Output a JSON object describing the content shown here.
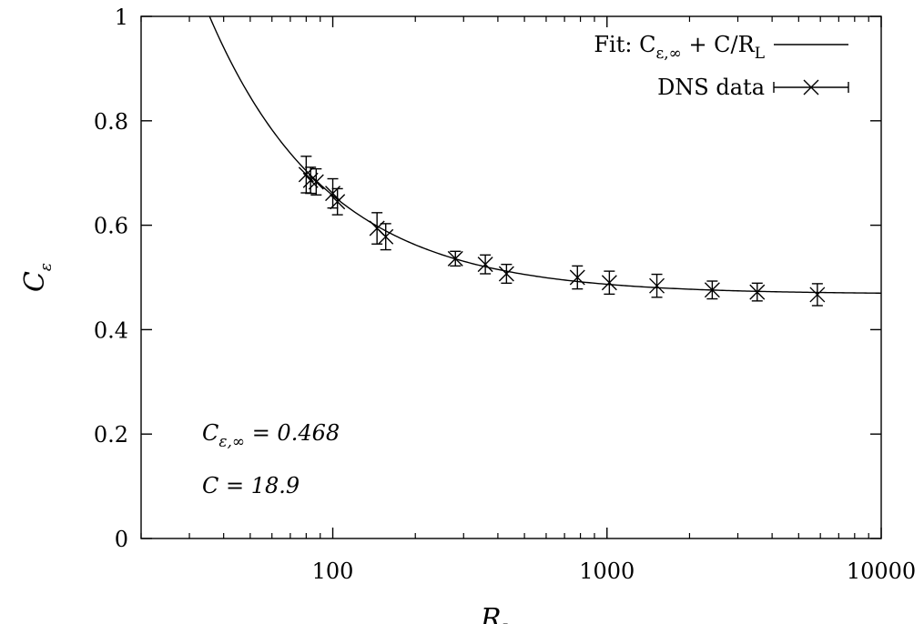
{
  "chart_data": {
    "type": "scatter",
    "xlabel": "R",
    "xlabel_sub": "L",
    "ylabel": "C",
    "ylabel_sub": "ε",
    "xscale": "log",
    "xlim": [
      20,
      10000
    ],
    "ylim": [
      0,
      1
    ],
    "xticks": [
      100,
      1000,
      10000
    ],
    "xtick_labels": [
      "100",
      "1000",
      "10000"
    ],
    "yticks": [
      0,
      0.2,
      0.4,
      0.6,
      0.8,
      1
    ],
    "ytick_labels": [
      "0",
      "0.2",
      "0.4",
      "0.6",
      "0.8",
      "1"
    ],
    "grid": false,
    "legend_position": "top-right",
    "legend": {
      "fit_prefix": "Fit: C",
      "fit_sub": "ε,∞",
      "fit_middle": " + C/R",
      "fit_sub2": "L",
      "data_label": "DNS data"
    },
    "fit": {
      "c_inf": 0.468,
      "c": 18.9
    },
    "annotations": {
      "cinf_prefix": "C",
      "cinf_sub": "ε,∞",
      "cinf_value": " = 0.468",
      "c_text": "C = 18.9"
    },
    "series": [
      {
        "x": [
          80,
          83,
          87,
          100,
          104,
          145,
          156,
          280,
          360,
          430,
          780,
          1020,
          1520,
          2420,
          3530,
          5850
        ],
        "y": [
          0.697,
          0.686,
          0.683,
          0.661,
          0.645,
          0.594,
          0.578,
          0.536,
          0.525,
          0.507,
          0.5,
          0.49,
          0.484,
          0.476,
          0.472,
          0.467
        ],
        "err": [
          0.035,
          0.025,
          0.025,
          0.028,
          0.025,
          0.03,
          0.025,
          0.014,
          0.018,
          0.018,
          0.022,
          0.022,
          0.022,
          0.017,
          0.017,
          0.021
        ]
      }
    ]
  }
}
